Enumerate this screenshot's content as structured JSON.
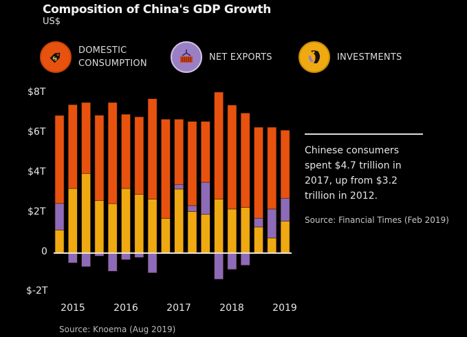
{
  "chart_data": {
    "type": "bar",
    "stacked": true,
    "title": "Composition of China's GDP Growth",
    "subtitle": "US$",
    "xlabel": "",
    "ylabel": "",
    "ylim": [
      -2,
      8
    ],
    "y_ticks": [
      {
        "value": 8,
        "label": "$8T"
      },
      {
        "value": 6,
        "label": "$6T"
      },
      {
        "value": 4,
        "label": "$4T"
      },
      {
        "value": 2,
        "label": "$2T"
      },
      {
        "value": 0,
        "label": "0"
      },
      {
        "value": -2,
        "label": "$-2T"
      }
    ],
    "x_ticks": [
      {
        "index": 1,
        "label": "2015"
      },
      {
        "index": 5,
        "label": "2016"
      },
      {
        "index": 9,
        "label": "2017"
      },
      {
        "index": 13,
        "label": "2018"
      },
      {
        "index": 17,
        "label": "2019"
      }
    ],
    "grid": false,
    "legend_position": "top",
    "units": "trillion US$",
    "series": [
      {
        "name": "Investments",
        "key": "investments",
        "color": "#EFAA12",
        "values": [
          1.16,
          3.24,
          3.99,
          2.63,
          2.48,
          3.24,
          2.94,
          2.71,
          1.74,
          3.21,
          2.09,
          1.94,
          2.71,
          2.21,
          2.29,
          1.31,
          0.76,
          1.6
        ]
      },
      {
        "name": "Net Exports",
        "key": "net_exports",
        "color": "#8E6BB8",
        "values": [
          1.33,
          -0.49,
          -0.68,
          -0.15,
          -0.91,
          -0.33,
          -0.22,
          -0.99,
          0.0,
          0.23,
          0.29,
          1.61,
          -1.31,
          -0.82,
          -0.61,
          0.44,
          1.45,
          1.15
        ]
      },
      {
        "name": "Domestic Consumption",
        "key": "consumption",
        "color": "#E8520F",
        "values": [
          4.41,
          4.2,
          3.56,
          4.28,
          5.07,
          3.72,
          3.89,
          5.03,
          4.97,
          3.27,
          4.22,
          3.05,
          5.36,
          5.21,
          4.73,
          4.56,
          4.1,
          3.41
        ]
      }
    ],
    "annotation": {
      "text": "Chinese consumers spent $4.7 trillion in 2017, up from $3.2 trillion in 2012.",
      "source": "Source: Financial Times (Feb 2019)"
    },
    "source": "Source: Knoema (Aug 2019)"
  },
  "header": {
    "title": "Composition of China's GDP Growth",
    "subtitle": "US$"
  },
  "legend": [
    {
      "label_line1": "DOMESTIC",
      "label_line2": "CONSUMPTION",
      "icon": "price-tag-icon",
      "color": "#E8520F"
    },
    {
      "label_line1": "NET EXPORTS",
      "label_line2": "",
      "icon": "shipping-container-icon",
      "color": "#9B7FC4"
    },
    {
      "label_line1": "INVESTMENTS",
      "label_line2": "",
      "icon": "piggy-bank-icon",
      "color": "#EFAA12"
    }
  ],
  "annotation": {
    "line1": "Chinese consumers",
    "line2": "spent $4.7 trillion in",
    "line3": "2017, up from $3.2",
    "line4": "trillion in 2012.",
    "source": "Source: Financial Times (Feb 2019)"
  },
  "footer": {
    "source": "Source: Knoema (Aug 2019)"
  }
}
